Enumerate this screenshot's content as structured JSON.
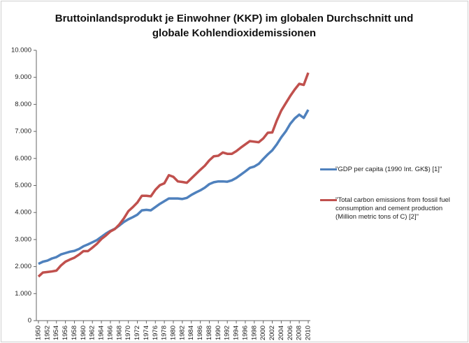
{
  "chart_data": {
    "type": "line",
    "title": "Bruttoinlandsprodukt je Einwohner (KKP) im globalen Durchschnitt und globale Kohlendioxidemissionen",
    "x": [
      1950,
      1951,
      1952,
      1953,
      1954,
      1955,
      1956,
      1957,
      1958,
      1959,
      1960,
      1961,
      1962,
      1963,
      1964,
      1965,
      1966,
      1967,
      1968,
      1969,
      1970,
      1971,
      1972,
      1973,
      1974,
      1975,
      1976,
      1977,
      1978,
      1979,
      1980,
      1981,
      1982,
      1983,
      1984,
      1985,
      1986,
      1987,
      1988,
      1989,
      1990,
      1991,
      1992,
      1993,
      1994,
      1995,
      1996,
      1997,
      1998,
      1999,
      2000,
      2001,
      2002,
      2003,
      2004,
      2005,
      2006,
      2007,
      2008,
      2009,
      2010
    ],
    "series": [
      {
        "name": "\"GDP per capita (1990 Int. GK$) [1]\"",
        "color": "#4f81bd",
        "values": [
          2100,
          2180,
          2220,
          2300,
          2350,
          2450,
          2500,
          2550,
          2580,
          2650,
          2750,
          2820,
          2900,
          2980,
          3100,
          3220,
          3320,
          3400,
          3520,
          3650,
          3750,
          3830,
          3920,
          4080,
          4100,
          4080,
          4200,
          4320,
          4420,
          4520,
          4520,
          4520,
          4500,
          4540,
          4650,
          4740,
          4820,
          4920,
          5050,
          5120,
          5150,
          5150,
          5140,
          5190,
          5280,
          5400,
          5520,
          5650,
          5700,
          5800,
          5980,
          6150,
          6300,
          6520,
          6780,
          7000,
          7280,
          7480,
          7620,
          7500,
          7800
        ]
      },
      {
        "name": "\"Total carbon emissions from fossil fuel consumption and cement production (Million metric tons of C) [2]\"",
        "color": "#c0504d",
        "values": [
          1630,
          1780,
          1800,
          1820,
          1850,
          2040,
          2180,
          2260,
          2330,
          2440,
          2570,
          2570,
          2700,
          2840,
          3020,
          3150,
          3300,
          3390,
          3560,
          3780,
          4050,
          4200,
          4370,
          4620,
          4620,
          4600,
          4840,
          5010,
          5080,
          5380,
          5320,
          5150,
          5130,
          5100,
          5260,
          5420,
          5580,
          5730,
          5930,
          6080,
          6100,
          6220,
          6170,
          6170,
          6270,
          6400,
          6520,
          6640,
          6620,
          6600,
          6740,
          6950,
          6960,
          7400,
          7770,
          8040,
          8310,
          8550,
          8760,
          8720,
          9170
        ]
      }
    ],
    "xlim": [
      1950,
      2010
    ],
    "xticks": [
      1950,
      1952,
      1954,
      1956,
      1958,
      1960,
      1962,
      1964,
      1966,
      1968,
      1970,
      1972,
      1974,
      1976,
      1978,
      1980,
      1982,
      1984,
      1986,
      1988,
      1990,
      1992,
      1994,
      1996,
      1998,
      2000,
      2002,
      2004,
      2006,
      2008,
      2010
    ],
    "ylim": [
      0,
      10000
    ],
    "yticks": [
      0,
      {
        "value": 1000,
        "label": "1.000"
      },
      {
        "value": 2000,
        "label": "2.000"
      },
      {
        "value": 3000,
        "label": "3.000"
      },
      {
        "value": 4000,
        "label": "4.000"
      },
      {
        "value": 5000,
        "label": "5.000"
      },
      {
        "value": 6000,
        "label": "6.000"
      },
      {
        "value": 7000,
        "label": "7.000"
      },
      {
        "value": 8000,
        "label": "8.000"
      },
      {
        "value": 9000,
        "label": "9.000"
      },
      {
        "value": 10000,
        "label": "10.000"
      }
    ],
    "grid": false,
    "legend": "right"
  }
}
